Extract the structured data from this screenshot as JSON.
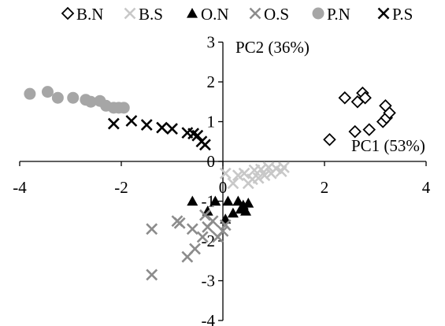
{
  "chart_data": {
    "type": "scatter",
    "title": "",
    "x_axis_label": "PC1 (53%)",
    "y_axis_label": "PC2 (36%)",
    "xlim": [
      -4,
      4
    ],
    "ylim": [
      -4,
      3
    ],
    "x_ticks": [
      "-4",
      "-2",
      "0",
      "2",
      "4"
    ],
    "y_ticks": [
      "-4",
      "-3",
      "-2",
      "-1",
      "0",
      "1",
      "2",
      "3"
    ],
    "grid": false,
    "legend_position": "top",
    "series": [
      {
        "name": "B.N",
        "marker": "diamond-open",
        "color": "#000000",
        "points": [
          [
            2.1,
            0.55
          ],
          [
            2.4,
            1.6
          ],
          [
            2.6,
            0.75
          ],
          [
            2.65,
            1.5
          ],
          [
            2.75,
            1.72
          ],
          [
            2.8,
            1.6
          ],
          [
            2.88,
            0.8
          ],
          [
            3.15,
            1.0
          ],
          [
            3.2,
            1.4
          ],
          [
            3.22,
            1.1
          ],
          [
            3.28,
            1.22
          ]
        ]
      },
      {
        "name": "B.S",
        "marker": "x",
        "color": "#c8c8c8",
        "points": [
          [
            0.05,
            -0.3
          ],
          [
            0.2,
            -0.55
          ],
          [
            0.3,
            -0.35
          ],
          [
            0.42,
            -0.3
          ],
          [
            0.5,
            -0.55
          ],
          [
            0.58,
            -0.45
          ],
          [
            0.62,
            -0.22
          ],
          [
            0.7,
            -0.42
          ],
          [
            0.75,
            -0.2
          ],
          [
            0.82,
            -0.35
          ],
          [
            0.9,
            -0.15
          ],
          [
            0.95,
            -0.3
          ],
          [
            1.05,
            -0.18
          ],
          [
            1.15,
            -0.25
          ],
          [
            1.2,
            -0.15
          ]
        ]
      },
      {
        "name": "O.N",
        "marker": "triangle",
        "color": "#000000",
        "points": [
          [
            -0.6,
            -1.0
          ],
          [
            -0.3,
            -1.25
          ],
          [
            -0.15,
            -1.0
          ],
          [
            0.05,
            -1.45
          ],
          [
            0.1,
            -1.0
          ],
          [
            0.2,
            -1.3
          ],
          [
            0.3,
            -1.0
          ],
          [
            0.35,
            -1.2
          ],
          [
            0.4,
            -1.1
          ],
          [
            0.45,
            -1.25
          ],
          [
            0.5,
            -1.05
          ]
        ]
      },
      {
        "name": "O.S",
        "marker": "x",
        "color": "#8c8c8c",
        "points": [
          [
            -1.4,
            -2.85
          ],
          [
            -1.4,
            -1.7
          ],
          [
            -0.9,
            -1.5
          ],
          [
            -0.85,
            -1.55
          ],
          [
            -0.7,
            -2.4
          ],
          [
            -0.6,
            -1.7
          ],
          [
            -0.55,
            -2.2
          ],
          [
            -0.4,
            -1.9
          ],
          [
            -0.35,
            -1.35
          ],
          [
            -0.3,
            -1.65
          ],
          [
            -0.2,
            -1.5
          ],
          [
            -0.1,
            -1.9
          ],
          [
            0.0,
            -1.75
          ],
          [
            0.05,
            -1.6
          ]
        ]
      },
      {
        "name": "P.N",
        "marker": "circle",
        "color": "#a6a6a6",
        "points": [
          [
            -3.8,
            1.7
          ],
          [
            -3.45,
            1.75
          ],
          [
            -3.25,
            1.6
          ],
          [
            -2.95,
            1.6
          ],
          [
            -2.7,
            1.55
          ],
          [
            -2.6,
            1.5
          ],
          [
            -2.42,
            1.52
          ],
          [
            -2.3,
            1.4
          ],
          [
            -2.15,
            1.35
          ],
          [
            -2.05,
            1.35
          ],
          [
            -1.95,
            1.35
          ]
        ]
      },
      {
        "name": "P.S",
        "marker": "x",
        "color": "#000000",
        "points": [
          [
            -2.15,
            0.95
          ],
          [
            -1.8,
            1.02
          ],
          [
            -1.5,
            0.92
          ],
          [
            -1.2,
            0.85
          ],
          [
            -1.0,
            0.82
          ],
          [
            -0.7,
            0.72
          ],
          [
            -0.58,
            0.7
          ],
          [
            -0.5,
            0.65
          ],
          [
            -0.42,
            0.5
          ],
          [
            -0.35,
            0.42
          ]
        ]
      }
    ]
  }
}
